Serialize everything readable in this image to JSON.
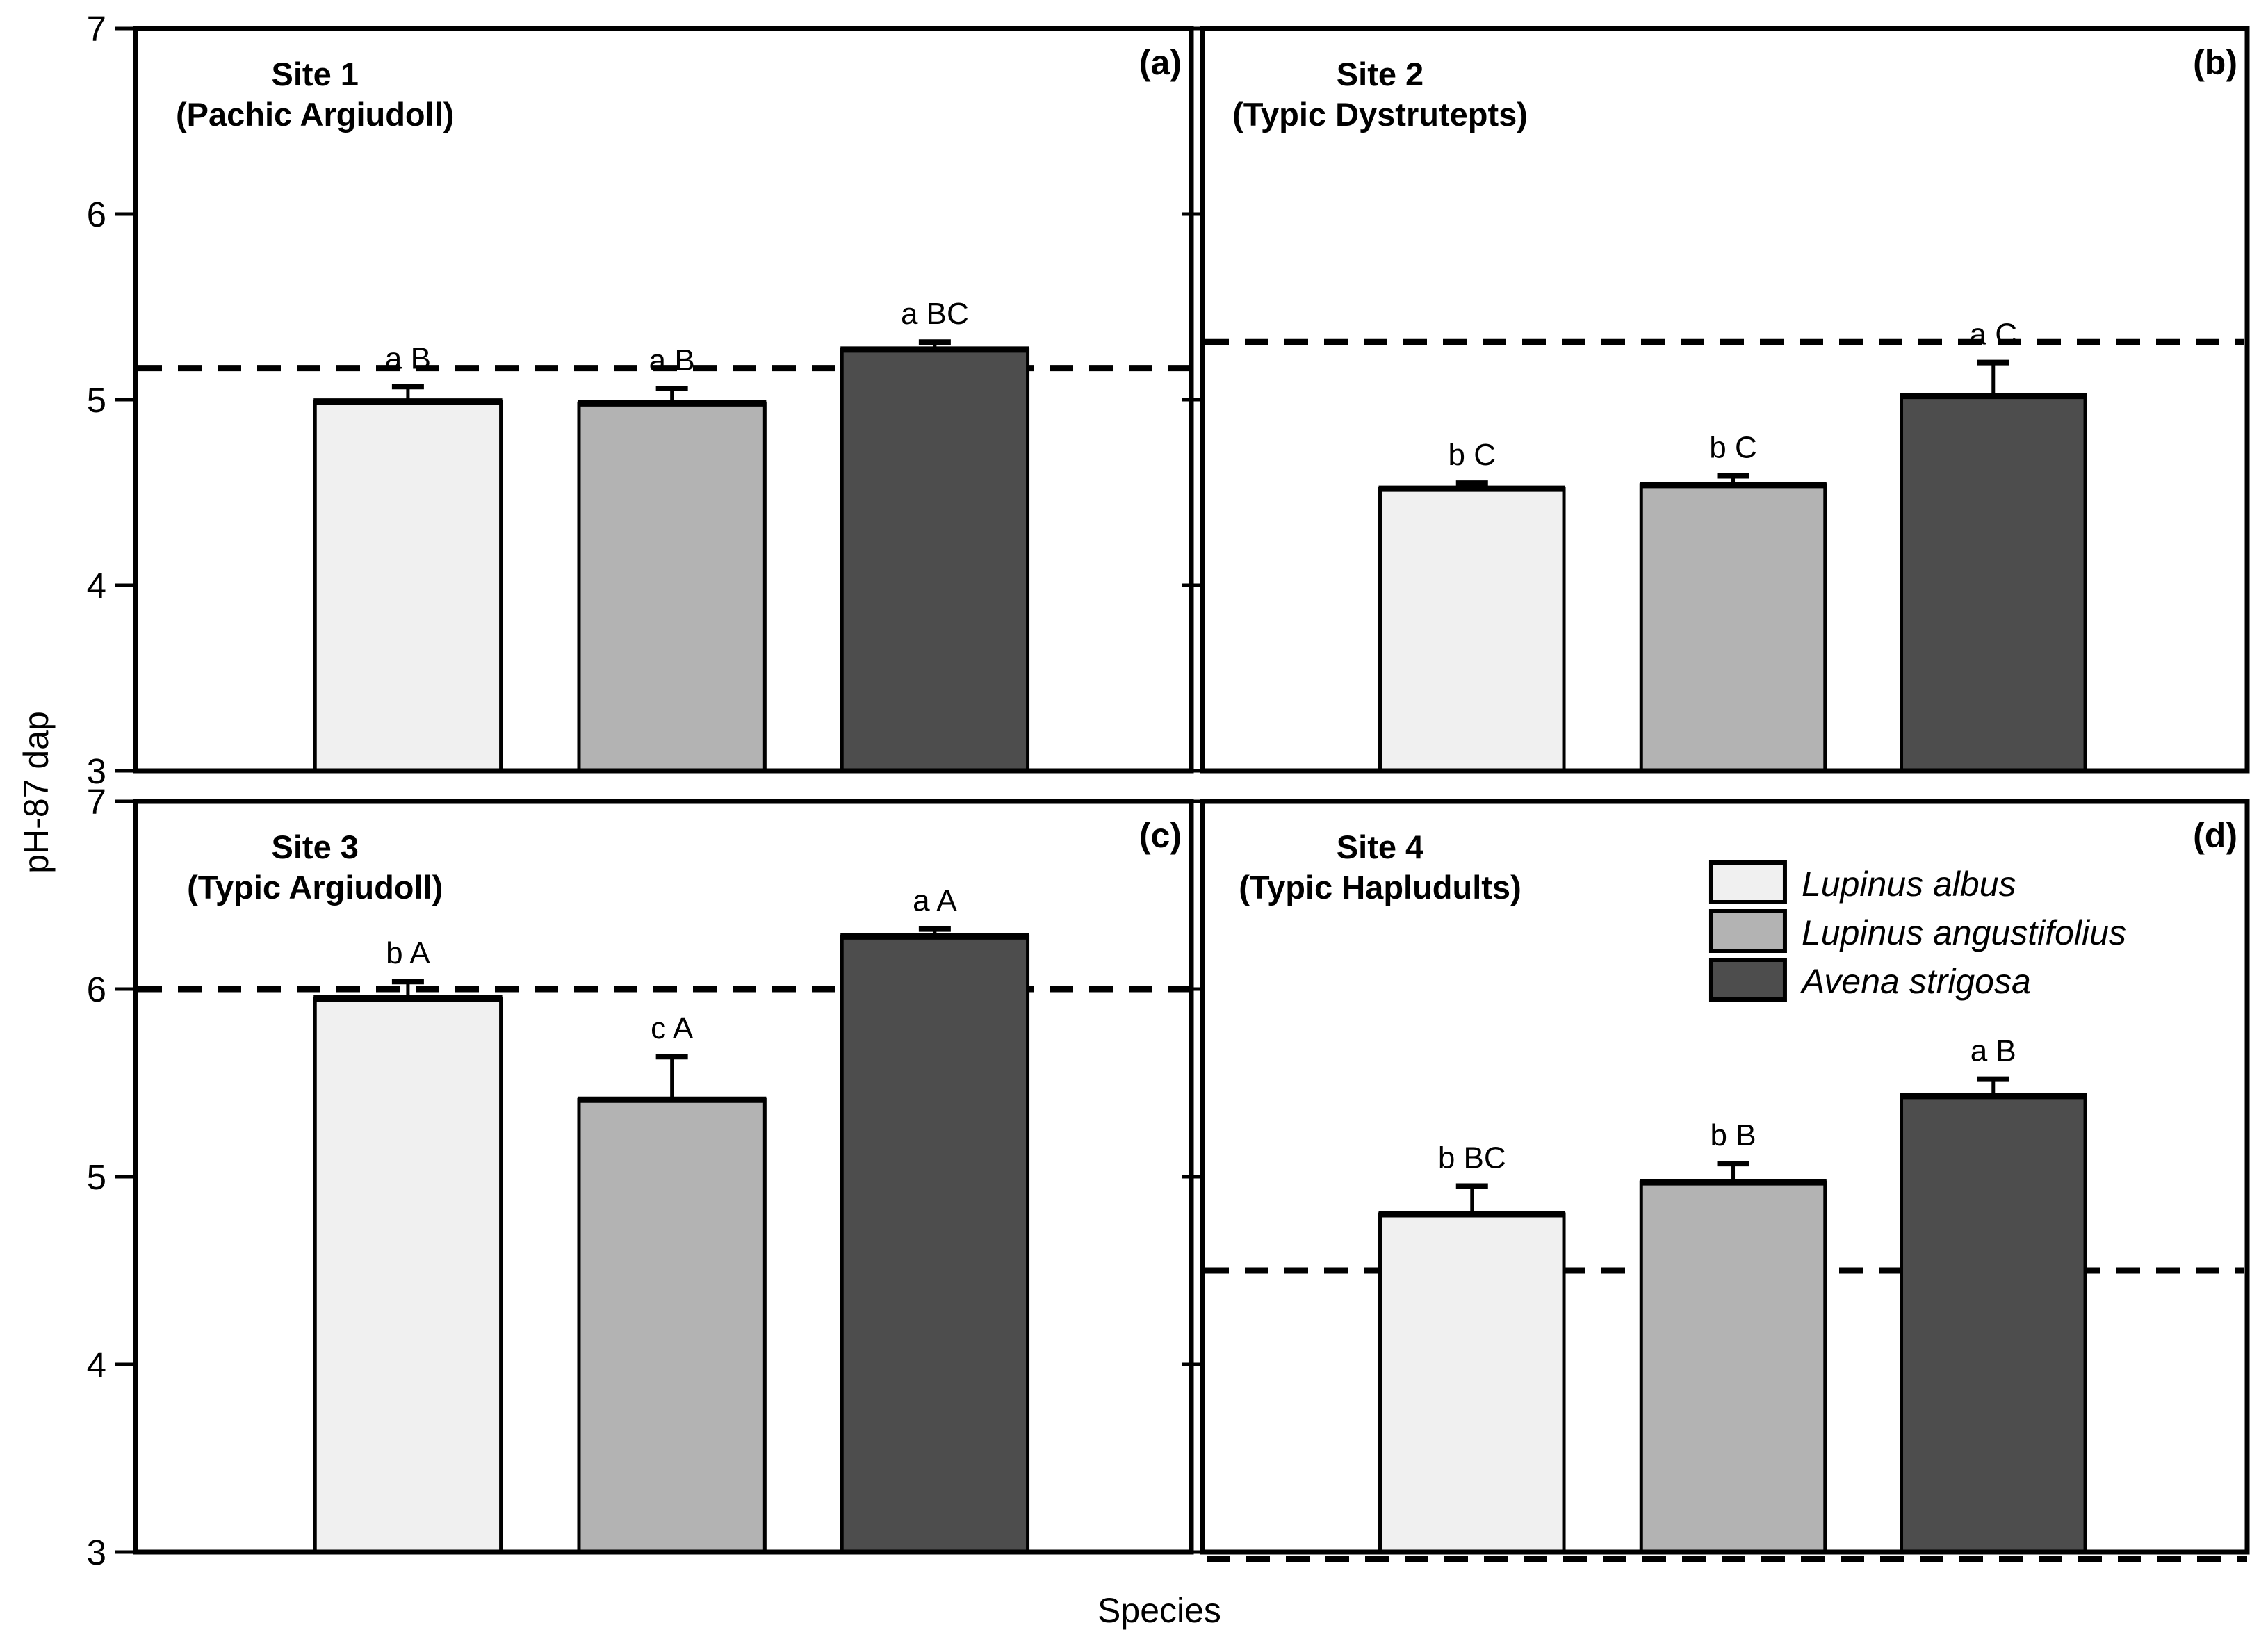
{
  "chart_data": {
    "type": "bar",
    "ylabel": "pH-87 dap",
    "xlabel": "Species",
    "ylim": [
      3,
      7
    ],
    "yticks": [
      7,
      6,
      5,
      4,
      3
    ],
    "grid": false,
    "bar_colors": [
      "#f0f0f0",
      "#b3b3b3",
      "#4d4d4d"
    ],
    "species": [
      "Lupinus albus",
      "Lupinus angustifolius",
      "Avena strigosa"
    ],
    "legend_position": "panel-d-upper-middle",
    "panels": [
      {
        "id": "a",
        "letter": "(a)",
        "site": "Site 1",
        "soil": "(Pachic Argiudoll)",
        "categories": [
          "Lupinus albus",
          "Lupinus angustifolius",
          "Avena strigosa"
        ],
        "values": [
          4.99,
          4.98,
          5.27
        ],
        "errors": [
          0.08,
          0.08,
          0.04
        ],
        "sig_labels": [
          "a B",
          "a B",
          "a BC"
        ],
        "dashed_line_y": 5.17,
        "show_legend": false
      },
      {
        "id": "b",
        "letter": "(b)",
        "site": "Site 2",
        "soil": "(Typic Dystrutepts)",
        "categories": [
          "Lupinus albus",
          "Lupinus angustifolius",
          "Avena strigosa"
        ],
        "values": [
          4.52,
          4.54,
          5.02
        ],
        "errors": [
          0.03,
          0.05,
          0.18
        ],
        "sig_labels": [
          "b C",
          "b C",
          "a C"
        ],
        "dashed_line_y": 5.31,
        "show_legend": false
      },
      {
        "id": "c",
        "letter": "(c)",
        "site": "Site 3",
        "soil": "(Typic Argiudoll)",
        "categories": [
          "Lupinus albus",
          "Lupinus angustifolius",
          "Avena strigosa"
        ],
        "values": [
          5.95,
          5.41,
          6.28
        ],
        "errors": [
          0.09,
          0.23,
          0.04
        ],
        "sig_labels": [
          "b A",
          "c A",
          "a A"
        ],
        "dashed_line_y": 6.0,
        "show_legend": false
      },
      {
        "id": "d",
        "letter": "(d)",
        "site": "Site 4",
        "soil": "(Typic Hapludults)",
        "categories": [
          "Lupinus albus",
          "Lupinus angustifolius",
          "Avena strigosa"
        ],
        "values": [
          4.8,
          4.97,
          5.43
        ],
        "errors": [
          0.15,
          0.1,
          0.09
        ],
        "sig_labels": [
          "b BC",
          "b B",
          "a B"
        ],
        "dashed_line_y": 4.5,
        "extra_dashed_line_y": 3.0,
        "show_legend": true
      }
    ]
  }
}
